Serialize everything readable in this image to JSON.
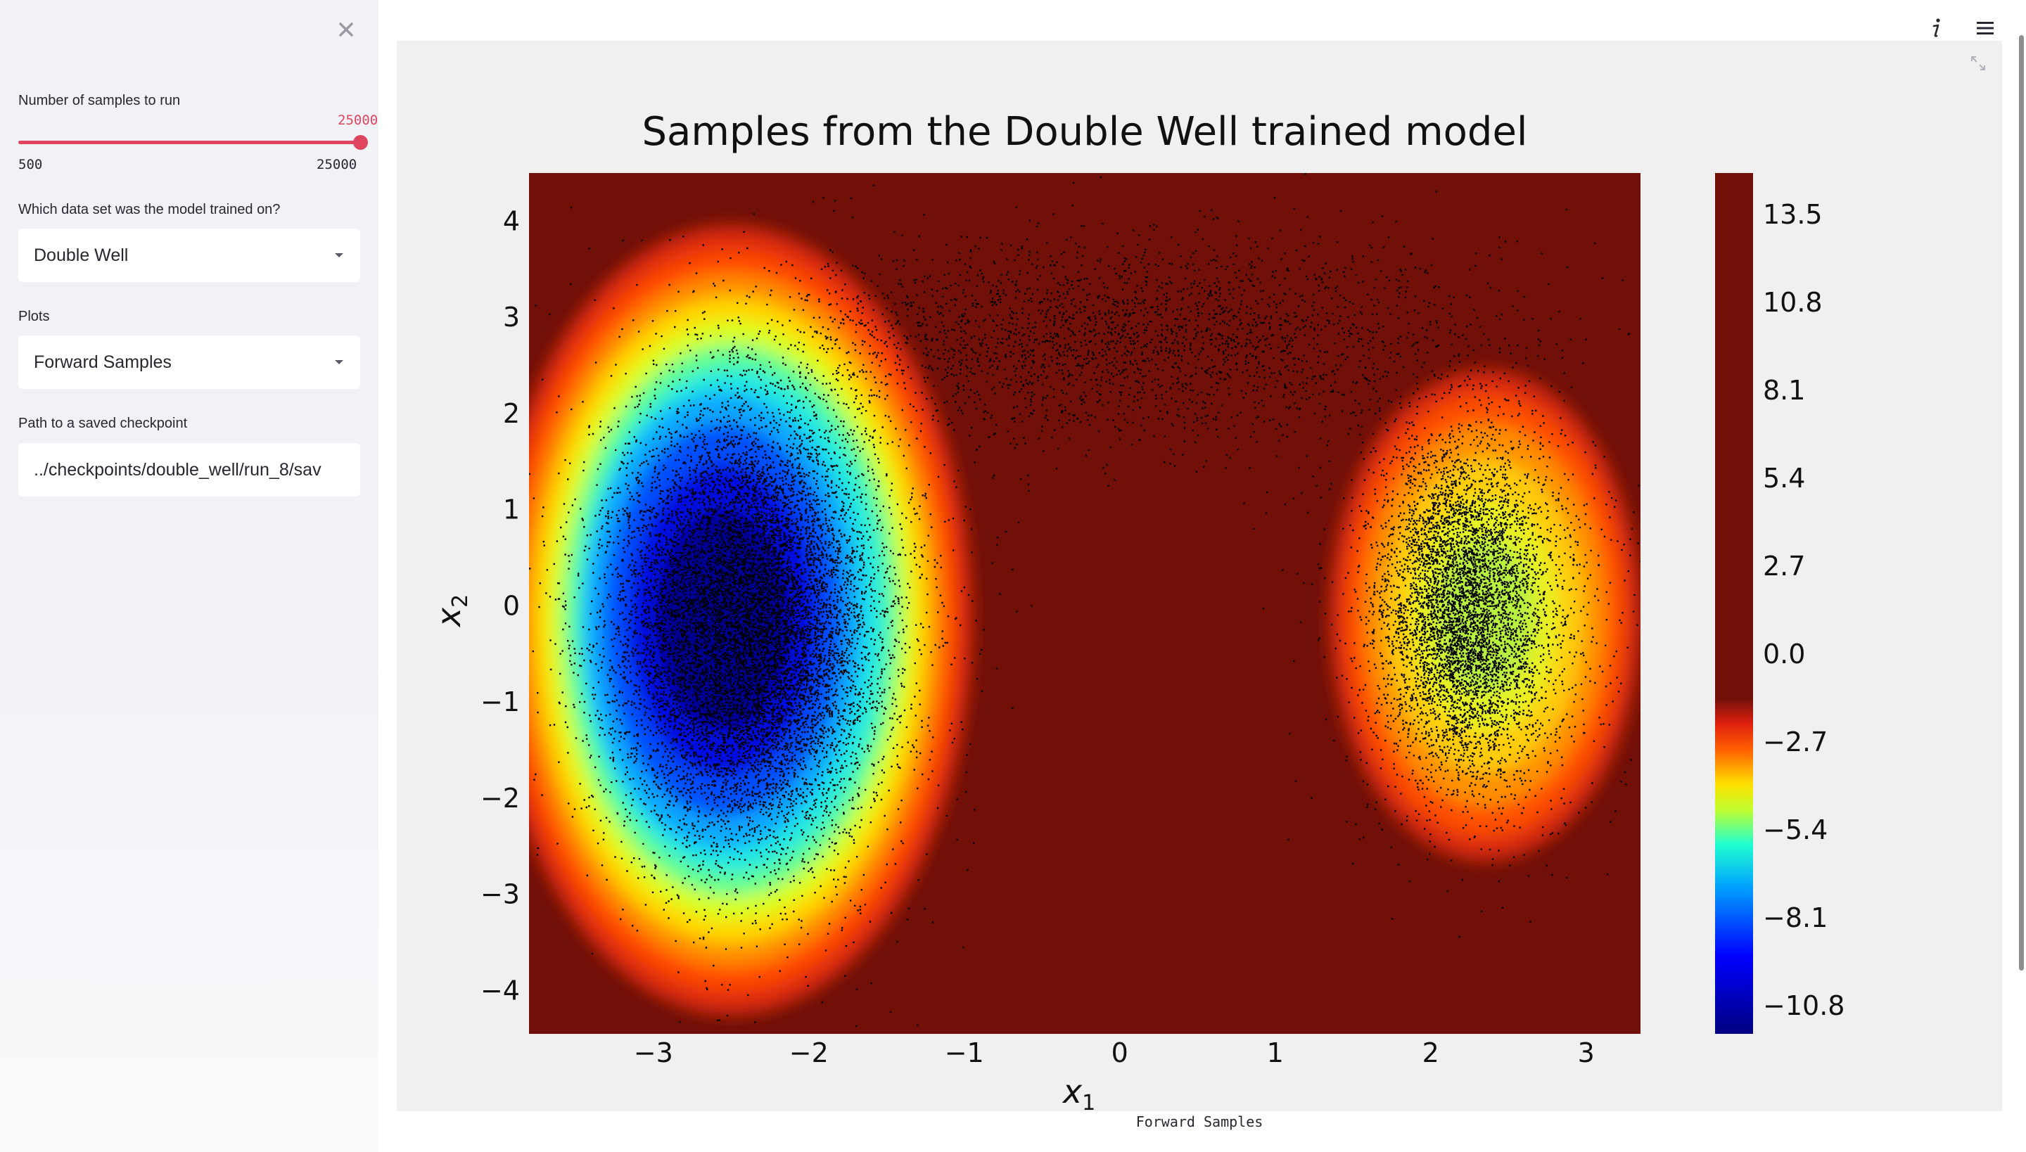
{
  "sidebar": {
    "samples_label": "Number of samples to run",
    "samples_value": "25000",
    "samples_min": "500",
    "samples_max": "25000",
    "samples_fraction": 1.0,
    "dataset_label": "Which data set was the model trained on?",
    "dataset_value": "Double Well",
    "plots_label": "Plots",
    "plots_value": "Forward Samples",
    "checkpoint_label": "Path to a saved checkpoint",
    "checkpoint_value": "../checkpoints/double_well/run_8/sav"
  },
  "icons": {
    "close": "close-icon",
    "info": "info-icon",
    "menu": "hamburger-menu-icon",
    "fullscreen": "fullscreen-icon",
    "dropdown": "chevron-down-icon"
  },
  "caption": "Forward Samples",
  "chart_data": {
    "type": "heatmap",
    "title": "Samples from the Double Well trained model",
    "xlabel": "x",
    "xlabel_sub": "1",
    "ylabel": "x",
    "ylabel_sub": "2",
    "xticks": [
      -3,
      -2,
      -1,
      0,
      1,
      2,
      3
    ],
    "yticks": [
      -4,
      -3,
      -2,
      -1,
      0,
      1,
      2,
      3,
      4
    ],
    "xlim": [
      -3.8,
      3.35
    ],
    "ylim": [
      -4.45,
      4.5
    ],
    "xtick_labels": [
      "−3",
      "−2",
      "−1",
      "0",
      "1",
      "2",
      "3"
    ],
    "ytick_labels": [
      "−4",
      "−3",
      "−2",
      "−1",
      "0",
      "1",
      "2",
      "3",
      "4"
    ],
    "colorbar_ticks": [
      "13.5",
      "10.8",
      "8.1",
      "5.4",
      "2.7",
      "0.0",
      "−2.7",
      "−5.4",
      "−8.1",
      "−10.8"
    ],
    "colorbar_range": [
      -12.0,
      15.0
    ],
    "colormap": "jet",
    "background_color": "#701008",
    "wells": [
      {
        "center_x": -2.4,
        "center_y": -0.2,
        "min_value": -12.0
      },
      {
        "center_x": 2.2,
        "center_y": 0.0,
        "min_value": -6.5
      }
    ],
    "sample_clusters": [
      {
        "center_x": -2.4,
        "center_y": -0.2,
        "count": 11000
      },
      {
        "center_x": 2.2,
        "center_y": 0.0,
        "count": 6000
      },
      {
        "center_x": 0.0,
        "center_y": 2.8,
        "count": 2800
      }
    ]
  }
}
